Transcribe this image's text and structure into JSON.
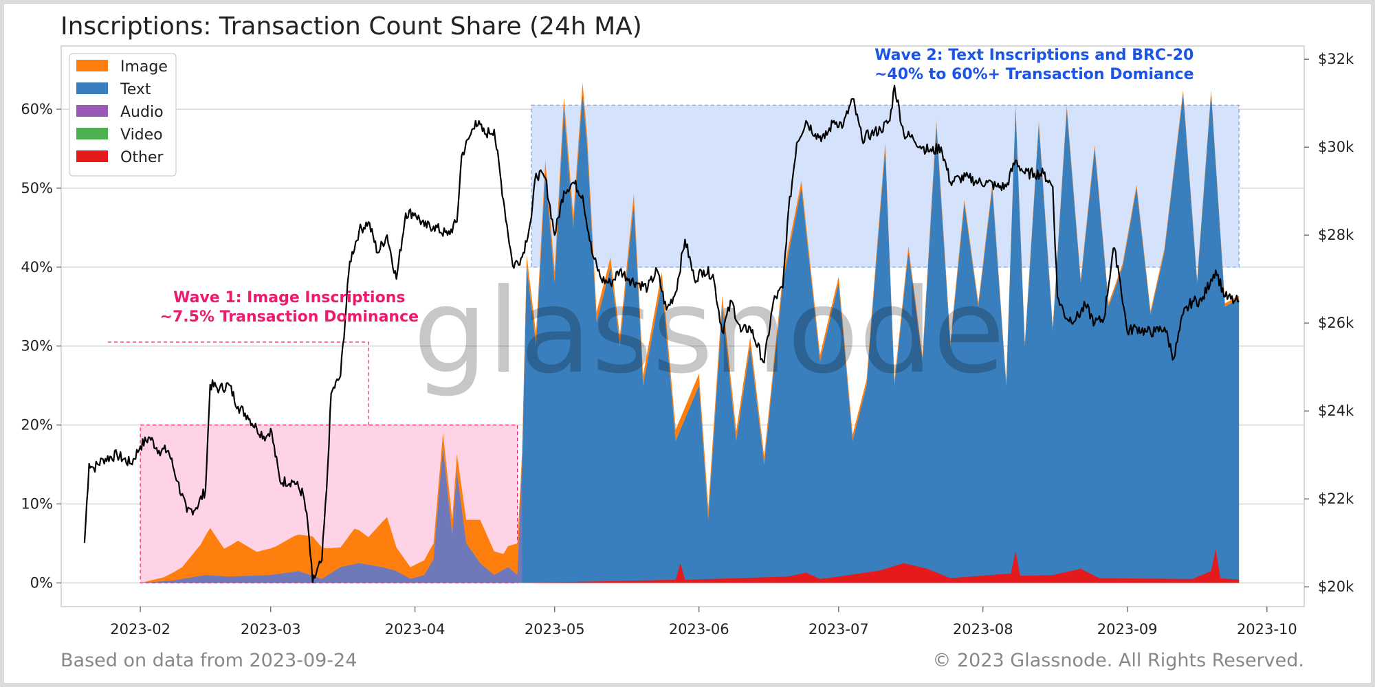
{
  "footer": {
    "left": "Based on data from 2023-09-24",
    "right": "© 2023 Glassnode. All Rights Reserved."
  },
  "watermark": "glassnode",
  "chart_data": {
    "type": "area",
    "title": "Inscriptions: Transaction Count Share (24h MA)",
    "x_ticks": [
      "2023-02",
      "2023-03",
      "2023-04",
      "2023-05",
      "2023-06",
      "2023-07",
      "2023-08",
      "2023-09",
      "2023-10"
    ],
    "x_range": [
      "2023-01-15",
      "2023-10-09"
    ],
    "y_left": {
      "ticks": [
        "0%",
        "10%",
        "20%",
        "30%",
        "40%",
        "50%",
        "60%"
      ],
      "range": [
        -3,
        68
      ]
    },
    "y_right": {
      "ticks": [
        "$20k",
        "$22k",
        "$24k",
        "$26k",
        "$28k",
        "$30k",
        "$32k"
      ],
      "range": [
        19550,
        32300
      ]
    },
    "legend": {
      "placement": "top-left",
      "entries": [
        {
          "name": "Image",
          "color": "#ff7f0e"
        },
        {
          "name": "Text",
          "color": "#3a7fbd"
        },
        {
          "name": "Audio",
          "color": "#9b59b6"
        },
        {
          "name": "Video",
          "color": "#4caf50"
        },
        {
          "name": "Other",
          "color": "#e41a1c"
        }
      ]
    },
    "grid": true,
    "annotations": [
      {
        "lines": [
          "Wave 1: Image Inscriptions",
          "~7.5% Transaction Dominance"
        ],
        "color": "#ee1a6b",
        "region": {
          "x": [
            "2023-02-01",
            "2023-04-23"
          ],
          "y": [
            0,
            20
          ]
        }
      },
      {
        "lines": [
          "Wave 2: Text Inscriptions and BRC-20",
          "~40% to 60%+ Transaction Domiance"
        ],
        "color": "#1a55e8",
        "region": {
          "x": [
            "2023-04-26",
            "2023-09-25"
          ],
          "y": [
            40,
            60.5
          ]
        }
      }
    ],
    "series_area": {
      "image": {
        "name": "Image",
        "points": [
          [
            "2023-02-01",
            0
          ],
          [
            "2023-02-06",
            0.5
          ],
          [
            "2023-02-10",
            1.5
          ],
          [
            "2023-02-14",
            4
          ],
          [
            "2023-02-16",
            6
          ],
          [
            "2023-02-19",
            3.5
          ],
          [
            "2023-02-22",
            4.5
          ],
          [
            "2023-02-26",
            3
          ],
          [
            "2023-03-02",
            3.5
          ],
          [
            "2023-03-06",
            4.5
          ],
          [
            "2023-03-10",
            5
          ],
          [
            "2023-03-13",
            3.5
          ],
          [
            "2023-03-16",
            2.5
          ],
          [
            "2023-03-19",
            4.5
          ],
          [
            "2023-03-22",
            3.5
          ],
          [
            "2023-03-26",
            6.5
          ],
          [
            "2023-03-28",
            3
          ],
          [
            "2023-03-31",
            1.5
          ],
          [
            "2023-04-04",
            2
          ],
          [
            "2023-04-07",
            2
          ],
          [
            "2023-04-09",
            2
          ],
          [
            "2023-04-12",
            3
          ],
          [
            "2023-04-15",
            5.5
          ],
          [
            "2023-04-18",
            3
          ],
          [
            "2023-04-20",
            2
          ],
          [
            "2023-04-23",
            4
          ],
          [
            "2023-04-24",
            1.5
          ],
          [
            "2023-05-01",
            1.5
          ],
          [
            "2023-05-15",
            1.2
          ],
          [
            "2023-06-01",
            1.5
          ],
          [
            "2023-06-15",
            1
          ],
          [
            "2023-07-01",
            0.8
          ],
          [
            "2023-08-01",
            0.5
          ],
          [
            "2023-09-25",
            0.4
          ]
        ]
      },
      "text": {
        "name": "Text",
        "points": [
          [
            "2023-02-01",
            0
          ],
          [
            "2023-02-08",
            0.3
          ],
          [
            "2023-02-15",
            1
          ],
          [
            "2023-02-20",
            0.8
          ],
          [
            "2023-03-01",
            1
          ],
          [
            "2023-03-07",
            1.5
          ],
          [
            "2023-03-12",
            0.5
          ],
          [
            "2023-03-16",
            2
          ],
          [
            "2023-03-20",
            2.5
          ],
          [
            "2023-03-25",
            2
          ],
          [
            "2023-03-28",
            1.5
          ],
          [
            "2023-03-31",
            0.5
          ],
          [
            "2023-04-03",
            1
          ],
          [
            "2023-04-05",
            3
          ],
          [
            "2023-04-07",
            17
          ],
          [
            "2023-04-09",
            6
          ],
          [
            "2023-04-10",
            14
          ],
          [
            "2023-04-12",
            5
          ],
          [
            "2023-04-15",
            2.5
          ],
          [
            "2023-04-18",
            1
          ],
          [
            "2023-04-21",
            2
          ],
          [
            "2023-04-23",
            1
          ],
          [
            "2023-04-24",
            15
          ],
          [
            "2023-04-25",
            40
          ],
          [
            "2023-04-27",
            30
          ],
          [
            "2023-04-29",
            52
          ],
          [
            "2023-05-01",
            38
          ],
          [
            "2023-05-03",
            60
          ],
          [
            "2023-05-05",
            45
          ],
          [
            "2023-05-07",
            62
          ],
          [
            "2023-05-08",
            55
          ],
          [
            "2023-05-10",
            33
          ],
          [
            "2023-05-13",
            40
          ],
          [
            "2023-05-15",
            30
          ],
          [
            "2023-05-18",
            48
          ],
          [
            "2023-05-20",
            25
          ],
          [
            "2023-05-24",
            38
          ],
          [
            "2023-05-27",
            18
          ],
          [
            "2023-06-01",
            25
          ],
          [
            "2023-06-03",
            8
          ],
          [
            "2023-06-06",
            35
          ],
          [
            "2023-06-09",
            18
          ],
          [
            "2023-06-12",
            30
          ],
          [
            "2023-06-15",
            15
          ],
          [
            "2023-06-19",
            38
          ],
          [
            "2023-06-23",
            50
          ],
          [
            "2023-06-27",
            28
          ],
          [
            "2023-07-01",
            38
          ],
          [
            "2023-07-04",
            18
          ],
          [
            "2023-07-07",
            25
          ],
          [
            "2023-07-11",
            55
          ],
          [
            "2023-07-13",
            25
          ],
          [
            "2023-07-16",
            42
          ],
          [
            "2023-07-19",
            28
          ],
          [
            "2023-07-22",
            58
          ],
          [
            "2023-07-25",
            30
          ],
          [
            "2023-07-28",
            48
          ],
          [
            "2023-07-31",
            35
          ],
          [
            "2023-08-03",
            50
          ],
          [
            "2023-08-06",
            25
          ],
          [
            "2023-08-08",
            60
          ],
          [
            "2023-08-10",
            30
          ],
          [
            "2023-08-13",
            58
          ],
          [
            "2023-08-16",
            32
          ],
          [
            "2023-08-19",
            60
          ],
          [
            "2023-08-22",
            38
          ],
          [
            "2023-08-25",
            55
          ],
          [
            "2023-08-28",
            35
          ],
          [
            "2023-08-31",
            40
          ],
          [
            "2023-09-03",
            50
          ],
          [
            "2023-09-06",
            34
          ],
          [
            "2023-09-09",
            42
          ],
          [
            "2023-09-13",
            62
          ],
          [
            "2023-09-16",
            38
          ],
          [
            "2023-09-19",
            62
          ],
          [
            "2023-09-22",
            35
          ],
          [
            "2023-09-25",
            36
          ]
        ]
      },
      "other": {
        "name": "Other",
        "points": [
          [
            "2023-04-24",
            0
          ],
          [
            "2023-05-27",
            0.4
          ],
          [
            "2023-05-28",
            2.5
          ],
          [
            "2023-05-29",
            0.4
          ],
          [
            "2023-06-20",
            0.8
          ],
          [
            "2023-06-24",
            1.3
          ],
          [
            "2023-06-27",
            0.5
          ],
          [
            "2023-07-01",
            0.8
          ],
          [
            "2023-07-10",
            1.6
          ],
          [
            "2023-07-15",
            2.5
          ],
          [
            "2023-07-20",
            1.8
          ],
          [
            "2023-07-25",
            0.6
          ],
          [
            "2023-08-07",
            1.2
          ],
          [
            "2023-08-08",
            4
          ],
          [
            "2023-08-09",
            0.9
          ],
          [
            "2023-08-16",
            1
          ],
          [
            "2023-08-22",
            1.8
          ],
          [
            "2023-08-26",
            0.6
          ],
          [
            "2023-09-15",
            0.5
          ],
          [
            "2023-09-19",
            1.5
          ],
          [
            "2023-09-20",
            4.3
          ],
          [
            "2023-09-21",
            0.6
          ],
          [
            "2023-09-25",
            0.4
          ]
        ]
      }
    },
    "series_line": {
      "name": "price",
      "axis": "right",
      "color": "#000000",
      "points": [
        [
          "2023-01-20",
          21000
        ],
        [
          "2023-01-21",
          22800
        ],
        [
          "2023-01-22",
          22700
        ],
        [
          "2023-01-24",
          22900
        ],
        [
          "2023-01-27",
          23000
        ],
        [
          "2023-01-30",
          22800
        ],
        [
          "2023-02-01",
          23200
        ],
        [
          "2023-02-03",
          23400
        ],
        [
          "2023-02-05",
          23100
        ],
        [
          "2023-02-07",
          23100
        ],
        [
          "2023-02-09",
          22400
        ],
        [
          "2023-02-11",
          21700
        ],
        [
          "2023-02-13",
          21800
        ],
        [
          "2023-02-15",
          22200
        ],
        [
          "2023-02-16",
          24600
        ],
        [
          "2023-02-18",
          24500
        ],
        [
          "2023-02-20",
          24600
        ],
        [
          "2023-02-22",
          24100
        ],
        [
          "2023-02-24",
          23900
        ],
        [
          "2023-02-26",
          23600
        ],
        [
          "2023-02-28",
          23400
        ],
        [
          "2023-03-01",
          23600
        ],
        [
          "2023-03-03",
          22400
        ],
        [
          "2023-03-06",
          22400
        ],
        [
          "2023-03-08",
          22100
        ],
        [
          "2023-03-09",
          21400
        ],
        [
          "2023-03-10",
          20100
        ],
        [
          "2023-03-12",
          20600
        ],
        [
          "2023-03-13",
          22200
        ],
        [
          "2023-03-14",
          24400
        ],
        [
          "2023-03-16",
          24800
        ],
        [
          "2023-03-18",
          27400
        ],
        [
          "2023-03-20",
          28100
        ],
        [
          "2023-03-22",
          28300
        ],
        [
          "2023-03-24",
          27600
        ],
        [
          "2023-03-26",
          28000
        ],
        [
          "2023-03-28",
          27000
        ],
        [
          "2023-03-30",
          28500
        ],
        [
          "2023-04-01",
          28500
        ],
        [
          "2023-04-03",
          28200
        ],
        [
          "2023-04-05",
          28200
        ],
        [
          "2023-04-08",
          28000
        ],
        [
          "2023-04-10",
          28300
        ],
        [
          "2023-04-11",
          29800
        ],
        [
          "2023-04-13",
          30300
        ],
        [
          "2023-04-14",
          30600
        ],
        [
          "2023-04-16",
          30300
        ],
        [
          "2023-04-18",
          30400
        ],
        [
          "2023-04-20",
          28800
        ],
        [
          "2023-04-22",
          27300
        ],
        [
          "2023-04-24",
          27500
        ],
        [
          "2023-04-26",
          28400
        ],
        [
          "2023-04-27",
          29400
        ],
        [
          "2023-04-29",
          29300
        ],
        [
          "2023-05-01",
          28000
        ],
        [
          "2023-05-03",
          29000
        ],
        [
          "2023-05-05",
          29200
        ],
        [
          "2023-05-07",
          28900
        ],
        [
          "2023-05-09",
          27600
        ],
        [
          "2023-05-11",
          27000
        ],
        [
          "2023-05-13",
          26900
        ],
        [
          "2023-05-15",
          27200
        ],
        [
          "2023-05-17",
          27000
        ],
        [
          "2023-05-19",
          26900
        ],
        [
          "2023-05-21",
          26800
        ],
        [
          "2023-05-23",
          27200
        ],
        [
          "2023-05-25",
          26300
        ],
        [
          "2023-05-27",
          26700
        ],
        [
          "2023-05-29",
          27900
        ],
        [
          "2023-05-31",
          27000
        ],
        [
          "2023-06-02",
          27200
        ],
        [
          "2023-06-04",
          27100
        ],
        [
          "2023-06-06",
          25800
        ],
        [
          "2023-06-08",
          26500
        ],
        [
          "2023-06-10",
          25800
        ],
        [
          "2023-06-12",
          25900
        ],
        [
          "2023-06-15",
          25100
        ],
        [
          "2023-06-17",
          26500
        ],
        [
          "2023-06-19",
          26800
        ],
        [
          "2023-06-20",
          28300
        ],
        [
          "2023-06-22",
          30100
        ],
        [
          "2023-06-24",
          30600
        ],
        [
          "2023-06-26",
          30300
        ],
        [
          "2023-06-28",
          30200
        ],
        [
          "2023-06-30",
          30600
        ],
        [
          "2023-07-02",
          30500
        ],
        [
          "2023-07-04",
          31100
        ],
        [
          "2023-07-06",
          30200
        ],
        [
          "2023-07-08",
          30300
        ],
        [
          "2023-07-10",
          30400
        ],
        [
          "2023-07-12",
          30600
        ],
        [
          "2023-07-13",
          31400
        ],
        [
          "2023-07-15",
          30300
        ],
        [
          "2023-07-17",
          30200
        ],
        [
          "2023-07-19",
          30000
        ],
        [
          "2023-07-21",
          29900
        ],
        [
          "2023-07-23",
          30000
        ],
        [
          "2023-07-25",
          29200
        ],
        [
          "2023-07-27",
          29300
        ],
        [
          "2023-07-29",
          29300
        ],
        [
          "2023-07-31",
          29200
        ],
        [
          "2023-08-02",
          29200
        ],
        [
          "2023-08-04",
          29100
        ],
        [
          "2023-08-06",
          29100
        ],
        [
          "2023-08-08",
          29700
        ],
        [
          "2023-08-10",
          29400
        ],
        [
          "2023-08-12",
          29400
        ],
        [
          "2023-08-14",
          29400
        ],
        [
          "2023-08-16",
          29100
        ],
        [
          "2023-08-17",
          26600
        ],
        [
          "2023-08-19",
          26100
        ],
        [
          "2023-08-21",
          26100
        ],
        [
          "2023-08-23",
          26400
        ],
        [
          "2023-08-25",
          26000
        ],
        [
          "2023-08-27",
          26100
        ],
        [
          "2023-08-29",
          27700
        ],
        [
          "2023-08-30",
          27300
        ],
        [
          "2023-09-01",
          25800
        ],
        [
          "2023-09-03",
          25900
        ],
        [
          "2023-09-05",
          25800
        ],
        [
          "2023-09-07",
          25800
        ],
        [
          "2023-09-09",
          25900
        ],
        [
          "2023-09-11",
          25200
        ],
        [
          "2023-09-13",
          26200
        ],
        [
          "2023-09-15",
          26500
        ],
        [
          "2023-09-17",
          26500
        ],
        [
          "2023-09-19",
          27000
        ],
        [
          "2023-09-20",
          27200
        ],
        [
          "2023-09-22",
          26600
        ],
        [
          "2023-09-24",
          26500
        ],
        [
          "2023-09-25",
          26500
        ]
      ]
    }
  }
}
